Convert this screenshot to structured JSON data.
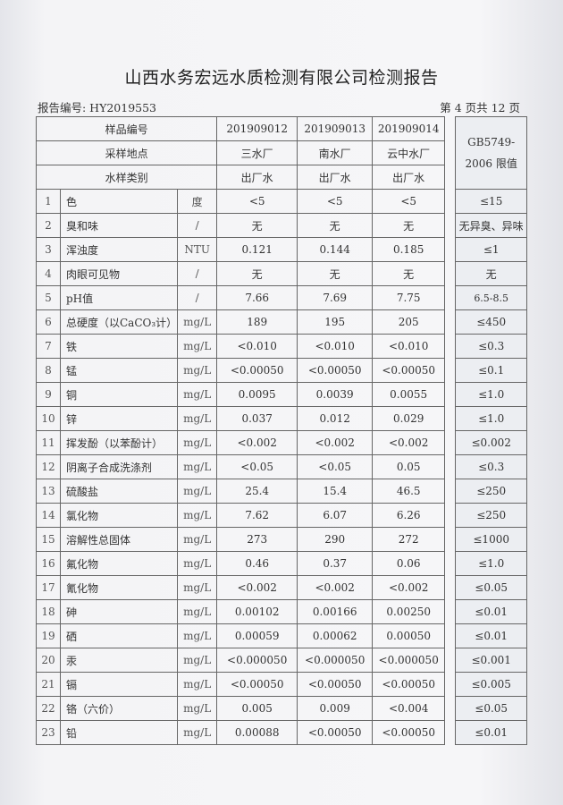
{
  "title": "山西水务宏远水质检测有限公司检测报告",
  "report_no": "报告编号: HY2019553",
  "page_info": "第 4 页共 12 页",
  "header": {
    "sample_no_label": "样品编号",
    "sample_site_label": "采样地点",
    "water_type_label": "水样类别",
    "limit_label_1": "GB5749-",
    "limit_label_2": "2006 限值",
    "samples": [
      {
        "no": "201909012",
        "site": "三水厂",
        "type": "出厂水"
      },
      {
        "no": "201909013",
        "site": "南水厂",
        "type": "出厂水"
      },
      {
        "no": "201909014",
        "site": "云中水厂",
        "type": "出厂水"
      }
    ]
  },
  "rows": [
    {
      "n": "1",
      "item": "色",
      "unit": "度",
      "v": [
        "<5",
        "<5",
        "<5"
      ],
      "limit": "≤15"
    },
    {
      "n": "2",
      "item": "臭和味",
      "unit": "/",
      "v": [
        "无",
        "无",
        "无"
      ],
      "limit": "无异臭、异味"
    },
    {
      "n": "3",
      "item": "浑浊度",
      "unit": "NTU",
      "v": [
        "0.121",
        "0.144",
        "0.185"
      ],
      "limit": "≤1"
    },
    {
      "n": "4",
      "item": "肉眼可见物",
      "unit": "/",
      "v": [
        "无",
        "无",
        "无"
      ],
      "limit": "无"
    },
    {
      "n": "5",
      "item": "pH值",
      "unit": "/",
      "v": [
        "7.66",
        "7.69",
        "7.75"
      ],
      "limit": "6.5-8.5"
    },
    {
      "n": "6",
      "item": "总硬度（以CaCO₃计）",
      "unit": "mg/L",
      "v": [
        "189",
        "195",
        "205"
      ],
      "limit": "≤450"
    },
    {
      "n": "7",
      "item": "铁",
      "unit": "mg/L",
      "v": [
        "<0.010",
        "<0.010",
        "<0.010"
      ],
      "limit": "≤0.3"
    },
    {
      "n": "8",
      "item": "锰",
      "unit": "mg/L",
      "v": [
        "<0.00050",
        "<0.00050",
        "<0.00050"
      ],
      "limit": "≤0.1"
    },
    {
      "n": "9",
      "item": "铜",
      "unit": "mg/L",
      "v": [
        "0.0095",
        "0.0039",
        "0.0055"
      ],
      "limit": "≤1.0"
    },
    {
      "n": "10",
      "item": "锌",
      "unit": "mg/L",
      "v": [
        "0.037",
        "0.012",
        "0.029"
      ],
      "limit": "≤1.0"
    },
    {
      "n": "11",
      "item": "挥发酚（以苯酚计）",
      "unit": "mg/L",
      "v": [
        "<0.002",
        "<0.002",
        "<0.002"
      ],
      "limit": "≤0.002"
    },
    {
      "n": "12",
      "item": "阴离子合成洗涤剂",
      "unit": "mg/L",
      "v": [
        "<0.05",
        "<0.05",
        "0.05"
      ],
      "limit": "≤0.3"
    },
    {
      "n": "13",
      "item": "硫酸盐",
      "unit": "mg/L",
      "v": [
        "25.4",
        "15.4",
        "46.5"
      ],
      "limit": "≤250"
    },
    {
      "n": "14",
      "item": "氯化物",
      "unit": "mg/L",
      "v": [
        "7.62",
        "6.07",
        "6.26"
      ],
      "limit": "≤250"
    },
    {
      "n": "15",
      "item": "溶解性总固体",
      "unit": "mg/L",
      "v": [
        "273",
        "290",
        "272"
      ],
      "limit": "≤1000"
    },
    {
      "n": "16",
      "item": "氟化物",
      "unit": "mg/L",
      "v": [
        "0.46",
        "0.37",
        "0.06"
      ],
      "limit": "≤1.0"
    },
    {
      "n": "17",
      "item": "氰化物",
      "unit": "mg/L",
      "v": [
        "<0.002",
        "<0.002",
        "<0.002"
      ],
      "limit": "≤0.05"
    },
    {
      "n": "18",
      "item": "砷",
      "unit": "mg/L",
      "v": [
        "0.00102",
        "0.00166",
        "0.00250"
      ],
      "limit": "≤0.01"
    },
    {
      "n": "19",
      "item": "硒",
      "unit": "mg/L",
      "v": [
        "0.00059",
        "0.00062",
        "0.00050"
      ],
      "limit": "≤0.01"
    },
    {
      "n": "20",
      "item": "汞",
      "unit": "mg/L",
      "v": [
        "<0.000050",
        "<0.000050",
        "<0.000050"
      ],
      "limit": "≤0.001"
    },
    {
      "n": "21",
      "item": "镉",
      "unit": "mg/L",
      "v": [
        "<0.00050",
        "<0.00050",
        "<0.00050"
      ],
      "limit": "≤0.005"
    },
    {
      "n": "22",
      "item": "铬（六价）",
      "unit": "mg/L",
      "v": [
        "0.005",
        "0.009",
        "<0.004"
      ],
      "limit": "≤0.05"
    },
    {
      "n": "23",
      "item": "铅",
      "unit": "mg/L",
      "v": [
        "0.00088",
        "<0.00050",
        "<0.00050"
      ],
      "limit": "≤0.01"
    }
  ]
}
